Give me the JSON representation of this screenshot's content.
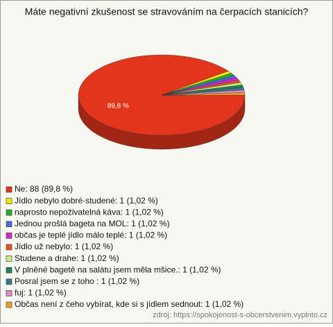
{
  "chart_data": {
    "type": "pie",
    "title": "Máte negativní zkušenost se stravováním na čerpacích stanicích?",
    "categories": [
      "Ne: 88 (89,8 %)",
      "Jídlo nebylo dobré-studené: 1 (1,02 %)",
      "naprosto nepoživatelná káva: 1 (1,02 %)",
      "Jednou prošlá bageta na MOL: 1 (1,02 %)",
      "občas je teplé jídlo málo teplé: 1 (1,02 %)",
      "Jídlo už nebylo: 1 (1,02 %)",
      "Studene a drahe: 1 (1,02 %)",
      "V plněné bagetě na salátu jsem měla mšice.: 1 (1,02 %)",
      "Posral jsem se z toho : 1 (1,02 %)",
      "fuj: 1 (1,02 %)",
      "Občas není z čeho vybírat, kde si s jídlem sednout: 1 (1,02 %)"
    ],
    "values": [
      89.8,
      1.02,
      1.02,
      1.02,
      1.02,
      1.02,
      1.02,
      1.02,
      1.02,
      1.02,
      1.02
    ],
    "value_labels": [
      "89,8 %",
      null,
      null,
      null,
      null,
      null,
      null,
      null,
      null,
      null,
      null
    ],
    "colors": [
      "#e3341c",
      "#f2e600",
      "#22b022",
      "#4a6ad8",
      "#d824d8",
      "#e8501e",
      "#c6ee84",
      "#1e8454",
      "#3a7890",
      "#e288c6",
      "#f0a024"
    ],
    "source": "zdroj: https://spokojenost-s-obcerstvenim.vyplnto.cz"
  }
}
